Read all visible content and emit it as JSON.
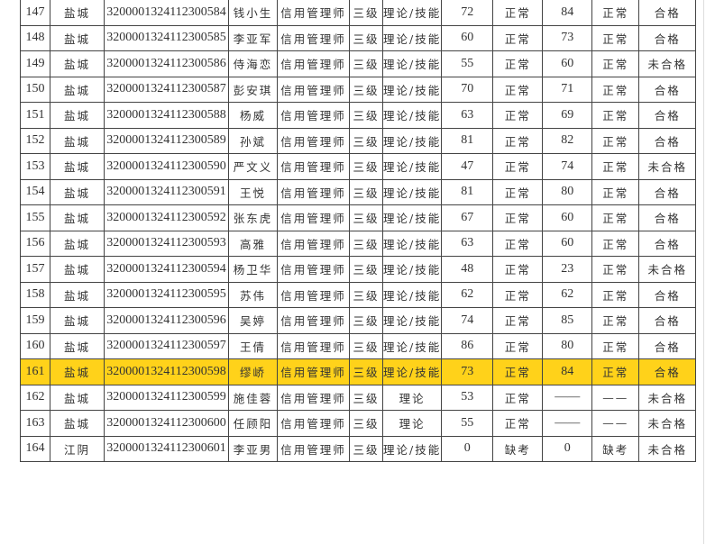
{
  "highlight_color": "#ffd21a",
  "rows": [
    [
      "147",
      "盐城",
      "3200001324112300584",
      "钱小生",
      "信用管理师",
      "三级",
      "理论/技能",
      "72",
      "正常",
      "84",
      "正常",
      "合格"
    ],
    [
      "148",
      "盐城",
      "3200001324112300585",
      "李亚军",
      "信用管理师",
      "三级",
      "理论/技能",
      "60",
      "正常",
      "73",
      "正常",
      "合格"
    ],
    [
      "149",
      "盐城",
      "3200001324112300586",
      "侍海恋",
      "信用管理师",
      "三级",
      "理论/技能",
      "55",
      "正常",
      "60",
      "正常",
      "未合格"
    ],
    [
      "150",
      "盐城",
      "3200001324112300587",
      "彭安琪",
      "信用管理师",
      "三级",
      "理论/技能",
      "70",
      "正常",
      "71",
      "正常",
      "合格"
    ],
    [
      "151",
      "盐城",
      "3200001324112300588",
      "杨威",
      "信用管理师",
      "三级",
      "理论/技能",
      "63",
      "正常",
      "69",
      "正常",
      "合格"
    ],
    [
      "152",
      "盐城",
      "3200001324112300589",
      "孙斌",
      "信用管理师",
      "三级",
      "理论/技能",
      "81",
      "正常",
      "82",
      "正常",
      "合格"
    ],
    [
      "153",
      "盐城",
      "3200001324112300590",
      "严文义",
      "信用管理师",
      "三级",
      "理论/技能",
      "47",
      "正常",
      "74",
      "正常",
      "未合格"
    ],
    [
      "154",
      "盐城",
      "3200001324112300591",
      "王悦",
      "信用管理师",
      "三级",
      "理论/技能",
      "81",
      "正常",
      "80",
      "正常",
      "合格"
    ],
    [
      "155",
      "盐城",
      "3200001324112300592",
      "张东虎",
      "信用管理师",
      "三级",
      "理论/技能",
      "67",
      "正常",
      "60",
      "正常",
      "合格"
    ],
    [
      "156",
      "盐城",
      "3200001324112300593",
      "高雅",
      "信用管理师",
      "三级",
      "理论/技能",
      "63",
      "正常",
      "60",
      "正常",
      "合格"
    ],
    [
      "157",
      "盐城",
      "3200001324112300594",
      "杨卫华",
      "信用管理师",
      "三级",
      "理论/技能",
      "48",
      "正常",
      "23",
      "正常",
      "未合格"
    ],
    [
      "158",
      "盐城",
      "3200001324112300595",
      "苏伟",
      "信用管理师",
      "三级",
      "理论/技能",
      "62",
      "正常",
      "62",
      "正常",
      "合格"
    ],
    [
      "159",
      "盐城",
      "3200001324112300596",
      "吴婷",
      "信用管理师",
      "三级",
      "理论/技能",
      "74",
      "正常",
      "85",
      "正常",
      "合格"
    ],
    [
      "160",
      "盐城",
      "3200001324112300597",
      "王倩",
      "信用管理师",
      "三级",
      "理论/技能",
      "86",
      "正常",
      "80",
      "正常",
      "合格"
    ],
    [
      "161",
      "盐城",
      "3200001324112300598",
      "缪峤",
      "信用管理师",
      "三级",
      "理论/技能",
      "73",
      "正常",
      "84",
      "正常",
      "合格"
    ],
    [
      "162",
      "盐城",
      "3200001324112300599",
      "施佳蓉",
      "信用管理师",
      "三级",
      "理论",
      "53",
      "正常",
      "——",
      "——",
      "未合格"
    ],
    [
      "163",
      "盐城",
      "3200001324112300600",
      "任顾阳",
      "信用管理师",
      "三级",
      "理论",
      "55",
      "正常",
      "——",
      "——",
      "未合格"
    ],
    [
      "164",
      "江阴",
      "3200001324112300601",
      "李亚男",
      "信用管理师",
      "三级",
      "理论/技能",
      "0",
      "缺考",
      "0",
      "缺考",
      "未合格"
    ]
  ],
  "highlighted_row": "161"
}
